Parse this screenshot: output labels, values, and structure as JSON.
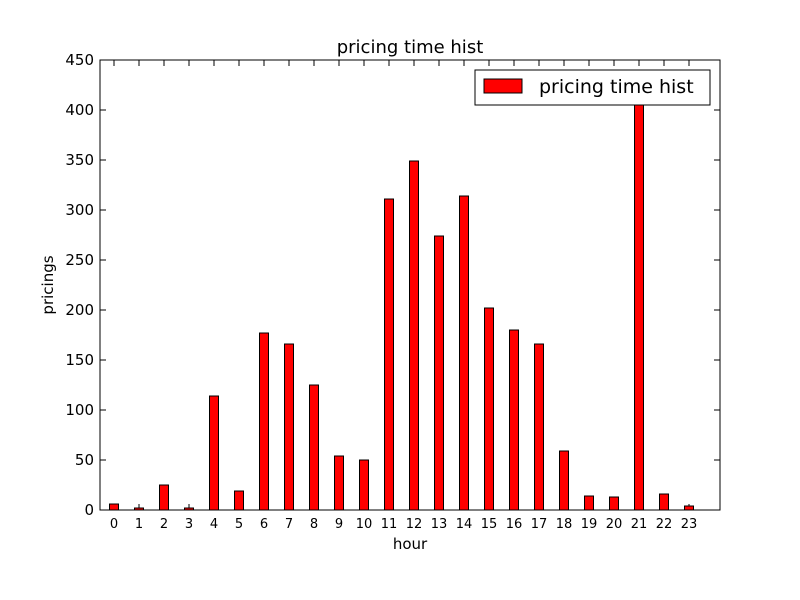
{
  "chart_data": {
    "type": "bar",
    "title": "pricing time hist",
    "xlabel": "hour",
    "ylabel": "pricings",
    "categories": [
      "0",
      "1",
      "2",
      "3",
      "4",
      "5",
      "6",
      "7",
      "8",
      "9",
      "10",
      "11",
      "12",
      "13",
      "14",
      "15",
      "16",
      "17",
      "18",
      "19",
      "20",
      "21",
      "22",
      "23"
    ],
    "series": [
      {
        "name": "pricing time hist",
        "color": "#ff0000",
        "values": [
          6,
          2,
          25,
          2,
          114,
          19,
          177,
          166,
          125,
          54,
          50,
          311,
          349,
          274,
          314,
          202,
          180,
          166,
          59,
          14,
          13,
          408,
          16,
          4
        ]
      }
    ],
    "ylim": [
      0,
      450
    ],
    "yticks": [
      0,
      50,
      100,
      150,
      200,
      250,
      300,
      350,
      400,
      450
    ],
    "grid": false,
    "legend_position": "top-right"
  }
}
